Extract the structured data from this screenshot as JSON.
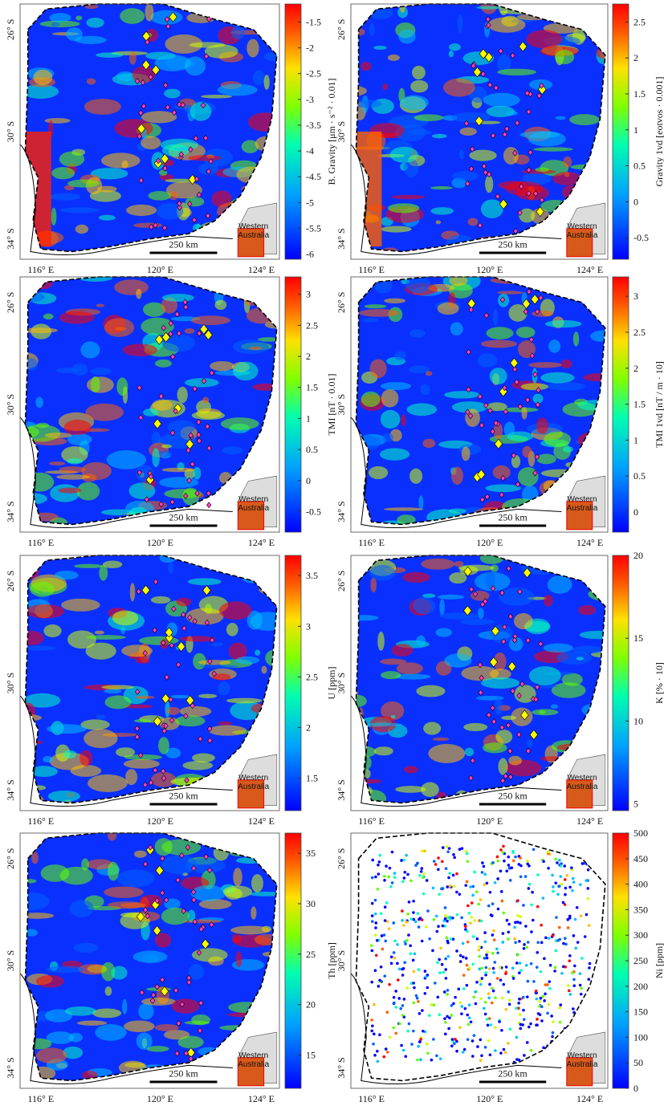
{
  "panels": [
    {
      "colorbar": {
        "label": "B. Gravity [μm · s⁻² · 0.01]",
        "range": [
          -6.1,
          -1.15
        ],
        "ticks": [
          -1.5,
          -2,
          -2.5,
          -3,
          -3.5,
          -4,
          -4.5,
          -5,
          -5.5,
          -6
        ]
      }
    },
    {
      "colorbar": {
        "label": "Gravity 1vd [eotvos · 0.001]",
        "range": [
          -0.8,
          2.75
        ],
        "ticks": [
          2.5,
          2,
          1.5,
          1,
          0.5,
          0,
          -0.5
        ]
      }
    },
    {
      "colorbar": {
        "label": "TMI [nT · 0.01]",
        "range": [
          -0.83,
          3.28
        ],
        "ticks": [
          3,
          2.5,
          2,
          1.5,
          1,
          0.5,
          0,
          -0.5
        ]
      }
    },
    {
      "colorbar": {
        "label": "TMI 1vd [nT / m · 10]",
        "range": [
          -0.28,
          3.27
        ],
        "ticks": [
          3,
          2.5,
          2,
          1.5,
          1,
          0.5,
          0
        ]
      }
    },
    {
      "colorbar": {
        "label": "U [ppm]",
        "range": [
          1.18,
          3.7
        ],
        "ticks": [
          3.5,
          3,
          2.5,
          2,
          1.5
        ]
      }
    },
    {
      "colorbar": {
        "label": "K [% · 10]",
        "range": [
          4.6,
          20
        ],
        "ticks": [
          20,
          15,
          10,
          5
        ]
      }
    },
    {
      "colorbar": {
        "label": "Th [ppm]",
        "range": [
          11.7,
          37
        ],
        "ticks": [
          35,
          30,
          25,
          20,
          15
        ]
      }
    },
    {
      "colorbar": {
        "label": "Ni [ppm]",
        "range": [
          0,
          500
        ],
        "ticks": [
          500,
          450,
          400,
          350,
          300,
          250,
          200,
          150,
          100,
          50,
          0
        ]
      }
    }
  ],
  "lat_labels": [
    "26° S",
    "30° S",
    "34° S"
  ],
  "lon_labels": [
    "116° E",
    "120° E",
    "124° E"
  ],
  "scale_bar": "250 km",
  "inset": [
    "Western",
    "Australia"
  ]
}
